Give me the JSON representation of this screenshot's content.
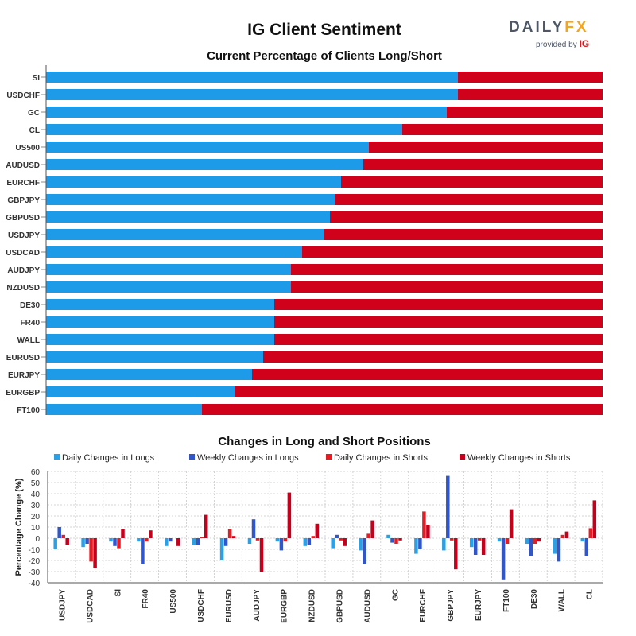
{
  "page": {
    "main_title": "IG Client Sentiment",
    "logo_word_a": "DAIL",
    "logo_word_b": "Y",
    "logo_word_c": "FX",
    "logo_sub": "provided by",
    "logo_ig": "IG"
  },
  "colors": {
    "long": "#1e9be8",
    "short": "#d0021b",
    "daily_long": "#2aa0e6",
    "weekly_long": "#3056c9",
    "daily_short": "#e51c23",
    "weekly_short": "#c4001c"
  },
  "chart_data": [
    {
      "type": "bar",
      "orientation": "horizontal",
      "stacked": true,
      "title": "Current Percentage of Clients Long/Short",
      "categories": [
        "SI",
        "USDCHF",
        "GC",
        "CL",
        "US500",
        "AUDUSD",
        "EURCHF",
        "GBPJPY",
        "GBPUSD",
        "USDJPY",
        "USDCAD",
        "AUDJPY",
        "NZDUSD",
        "DE30",
        "FR40",
        "WALL",
        "EURUSD",
        "EURJPY",
        "EURGBP",
        "FT100"
      ],
      "series": [
        {
          "values": [
            74,
            74,
            72,
            64,
            58,
            57,
            53,
            52,
            51,
            50,
            46,
            44,
            44,
            41,
            41,
            41,
            39,
            37,
            34,
            28
          ]
        },
        {
          "values": [
            26,
            26,
            28,
            36,
            42,
            43,
            47,
            48,
            49,
            50,
            54,
            56,
            56,
            59,
            59,
            59,
            61,
            63,
            66,
            72
          ]
        }
      ],
      "xlim": [
        0,
        100
      ]
    },
    {
      "type": "bar",
      "title": "Changes in Long and Short Positions",
      "ylabel": "Percentage Change (%)",
      "ylim": [
        -40,
        60
      ],
      "yticks": [
        "60",
        "50",
        "40",
        "30",
        "20",
        "10",
        "0",
        "-10",
        "-20",
        "-30",
        "-40"
      ],
      "grid": true,
      "legend": "top",
      "categories": [
        "USDJPY",
        "USDCAD",
        "SI",
        "FR40",
        "US500",
        "USDCHF",
        "EURUSD",
        "AUDJPY",
        "EURGBP",
        "NZDUSD",
        "GBPUSD",
        "AUDUSD",
        "GC",
        "EURCHF",
        "GBPJPY",
        "EURJPY",
        "FT100",
        "DE30",
        "WALL",
        "CL"
      ],
      "series": [
        {
          "name": "Daily Changes in Longs",
          "values": [
            -10,
            -8,
            -3,
            -3,
            -7,
            -6,
            -20,
            -5,
            -3,
            -7,
            -9,
            -11,
            3,
            -14,
            -11,
            -8,
            -3,
            -5,
            -14,
            -3
          ]
        },
        {
          "name": "Weekly Changes in Longs",
          "values": [
            10,
            -5,
            -7,
            -23,
            -3,
            -6,
            -7,
            17,
            -11,
            -6,
            3,
            -23,
            -4,
            -10,
            56,
            -15,
            -37,
            -16,
            -21,
            -16
          ]
        },
        {
          "name": "Daily Changes in Shorts",
          "values": [
            3,
            -21,
            -9,
            -3,
            0,
            1,
            8,
            -2,
            -3,
            2,
            -2,
            4,
            -5,
            24,
            -2,
            -2,
            -5,
            -5,
            3,
            9
          ]
        },
        {
          "name": "Weekly Changes in Shorts",
          "values": [
            -6,
            -27,
            8,
            7,
            -7,
            21,
            2,
            -30,
            41,
            13,
            -7,
            16,
            -2,
            12,
            -28,
            -15,
            26,
            -3,
            6,
            34
          ]
        }
      ]
    }
  ]
}
